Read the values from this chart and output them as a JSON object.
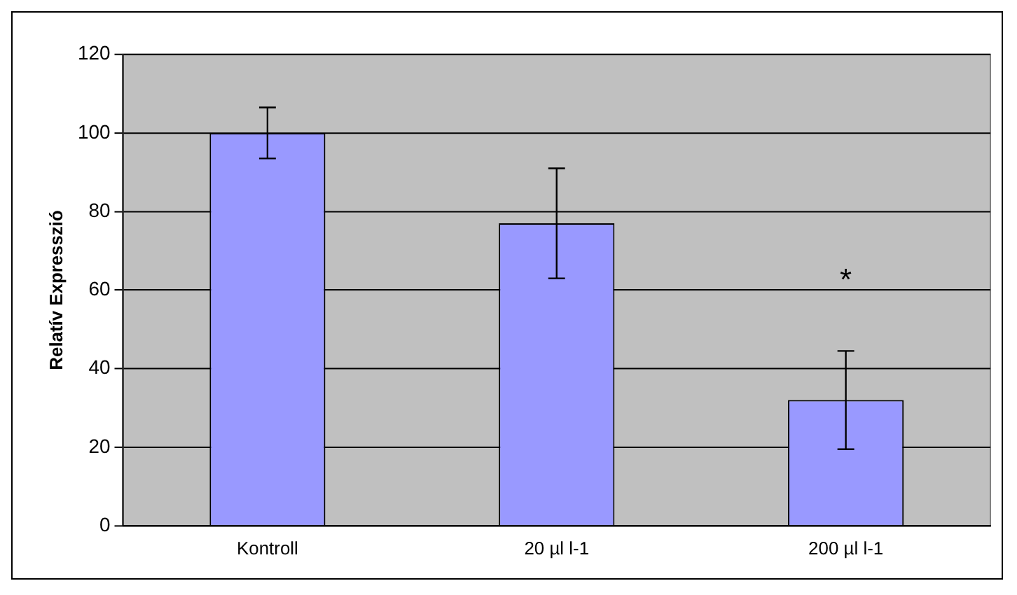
{
  "chart_data": {
    "type": "bar",
    "ylabel": "Relatív Expresszió",
    "categories": [
      "Kontroll",
      "20 µl l-1",
      "200 µl l-1"
    ],
    "values": [
      100,
      77,
      32
    ],
    "errors": [
      6.5,
      14,
      12.5
    ],
    "color": "#9999ff",
    "ylim": [
      0,
      120
    ],
    "yticks": [
      0,
      20,
      40,
      60,
      80,
      100,
      120
    ],
    "grid": "y",
    "annotations": [
      "*"
    ]
  }
}
